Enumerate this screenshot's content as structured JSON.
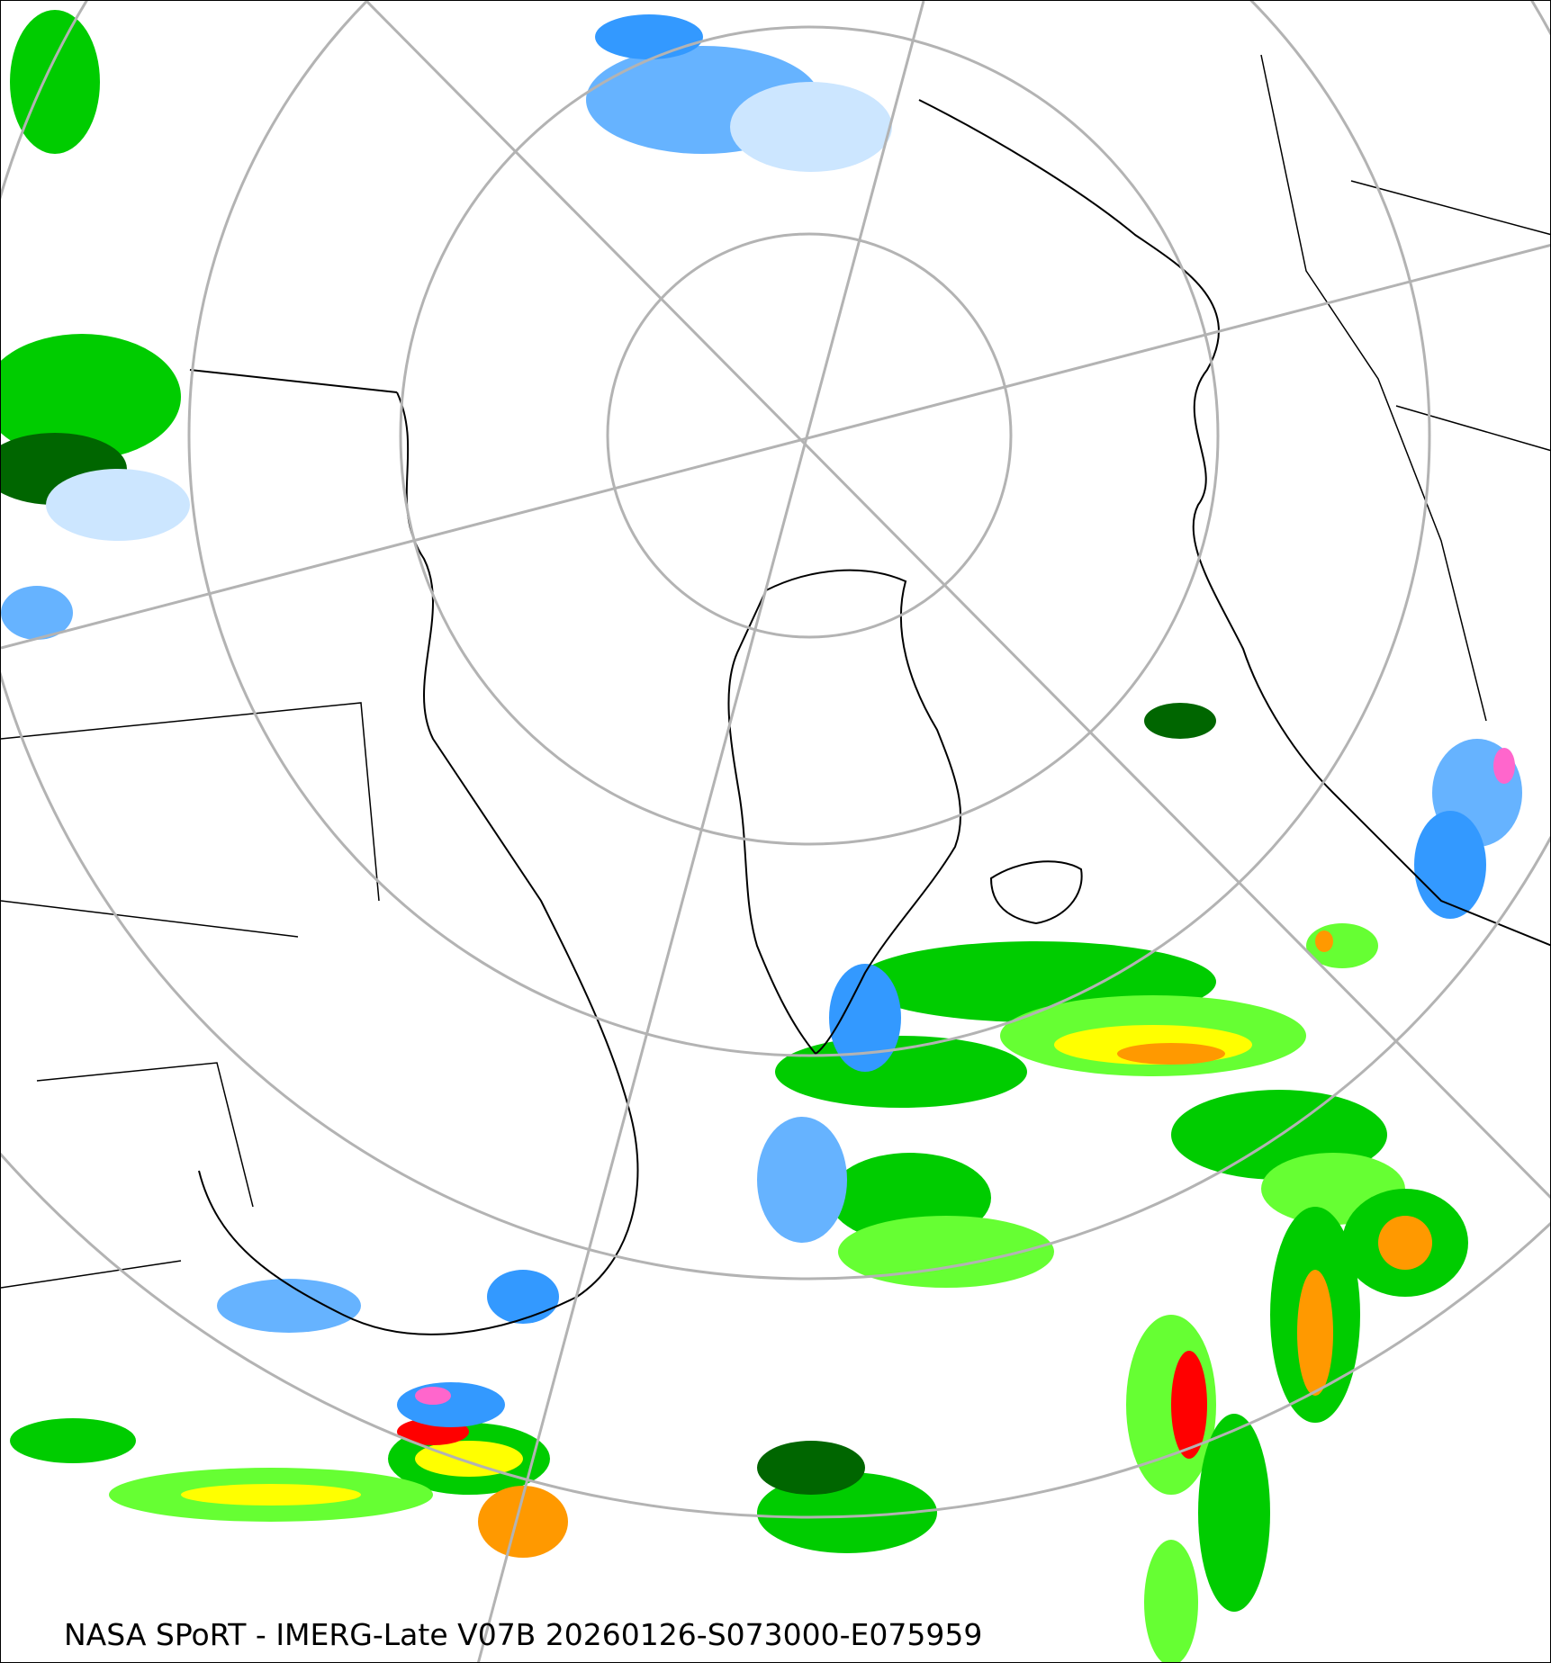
{
  "map": {
    "caption": "NASA SPoRT - IMERG-Late V07B 20260126-S073000-E075959",
    "projection": "north-polar-stereographic",
    "graticule_color": "#b3b3b3",
    "coastline_color": "#000000",
    "precip_colors": {
      "very_light": "#cce6ff",
      "light": "#66b3ff",
      "light_blue": "#3399ff",
      "dark_green": "#006600",
      "green": "#00cc00",
      "light_green": "#66ff33",
      "yellow": "#ffff00",
      "orange": "#ff9900",
      "red": "#ff0000",
      "pink": "#ff66cc"
    }
  }
}
